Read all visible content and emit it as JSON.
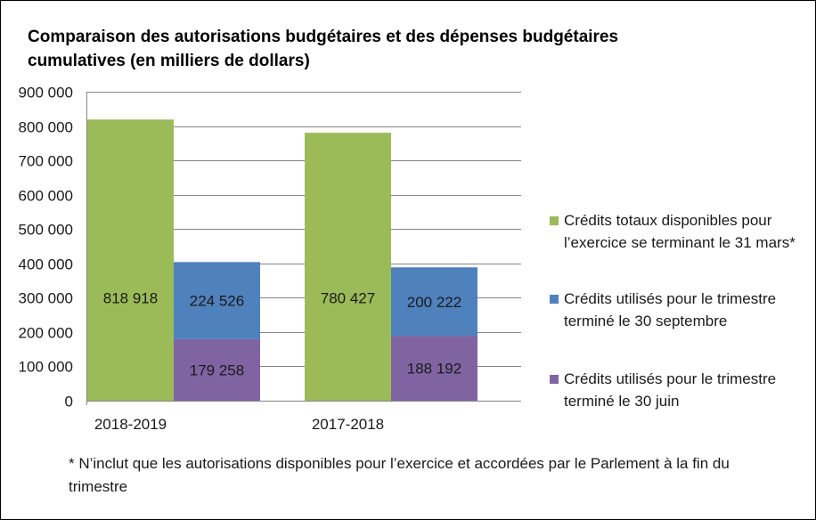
{
  "chart_data": {
    "type": "bar",
    "stacked_partial": true,
    "title": "Comparaison des autorisations budgétaires et des dépenses budgétaires cumulatives (en milliers de dollars)",
    "categories": [
      "2018-2019",
      "2017-2018"
    ],
    "ylim": [
      0,
      900000
    ],
    "yticks": [
      0,
      100000,
      200000,
      300000,
      400000,
      500000,
      600000,
      700000,
      800000,
      900000
    ],
    "ytick_labels": [
      "0",
      "100 000",
      "200 000",
      "300 000",
      "400 000",
      "500 000",
      "600 000",
      "700 000",
      "800 000",
      "900 000"
    ],
    "grid": true,
    "legend_position": "right",
    "series": [
      {
        "key": "total",
        "name": "Crédits totaux disponibles pour l’exercice se terminant le 31 mars*",
        "color": "#9bbb59",
        "values": [
          818918,
          780427
        ],
        "labels": [
          "818 918",
          "780 427"
        ]
      },
      {
        "key": "q2",
        "name": "Crédits utilisés pour le trimestre terminé le 30 septembre",
        "color": "#4f81bd",
        "values": [
          224526,
          200222
        ],
        "labels": [
          "224 526",
          "200 222"
        ]
      },
      {
        "key": "q1",
        "name": "Crédits utilisés pour le trimestre terminé le 30 juin",
        "color": "#8064a2",
        "values": [
          179258,
          188192
        ],
        "labels": [
          "179 258",
          "188 192"
        ]
      }
    ]
  },
  "legend": {
    "total": "Crédits totaux disponibles pour l’exercice se terminant le 31 mars*",
    "q2": "Crédits utilisés pour le trimestre terminé le 30 septembre",
    "q1": "Crédits utilisés pour le trimestre terminé le 30 juin"
  },
  "footnote": "* N’inclut que les autorisations disponibles pour l’exercice et accordées par le Parlement à la fin du trimestre",
  "colors": {
    "total": "#9bbb59",
    "q2": "#4f81bd",
    "q1": "#8064a2"
  }
}
